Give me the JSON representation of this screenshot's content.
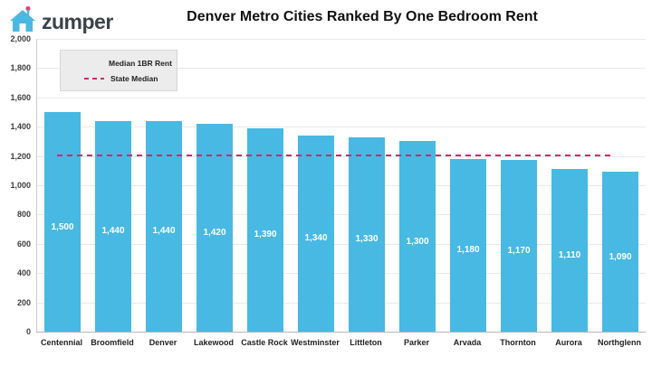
{
  "header": {
    "logo_text": "zumper",
    "title": "Denver Metro Cities Ranked By One Bedroom Rent"
  },
  "legend": {
    "bar_label": "Median 1BR Rent",
    "line_label": "State Median"
  },
  "colors": {
    "bar": "#47b9e2",
    "state_median_line": "#d6246e",
    "logo_blue": "#47b9e2",
    "logo_flag_pink": "#e0457b"
  },
  "chart_data": {
    "type": "bar",
    "title": "Denver Metro Cities Ranked By One Bedroom Rent",
    "categories": [
      "Centennial",
      "Broomfield",
      "Denver",
      "Lakewood",
      "Castle Rock",
      "Westminster",
      "Littleton",
      "Parker",
      "Arvada",
      "Thornton",
      "Aurora",
      "Northglenn"
    ],
    "values": [
      1500,
      1440,
      1440,
      1420,
      1390,
      1340,
      1330,
      1300,
      1180,
      1170,
      1110,
      1090
    ],
    "bar_value_labels": [
      "1,500",
      "1,440",
      "1,440",
      "1,420",
      "1,390",
      "1,340",
      "1,330",
      "1,300",
      "1,180",
      "1,170",
      "1,110",
      "1,090"
    ],
    "state_median": 1210,
    "xlabel": "",
    "ylabel": "",
    "ylim": [
      0,
      2000
    ],
    "ytick_step": 200,
    "ytick_labels": [
      "0",
      "200",
      "400",
      "600",
      "800",
      "1,000",
      "1,200",
      "1,400",
      "1,600",
      "1,800",
      "2,000"
    ],
    "grid": true,
    "legend_position": "top-left",
    "legend_entries": [
      "Median 1BR Rent",
      "State Median"
    ]
  }
}
